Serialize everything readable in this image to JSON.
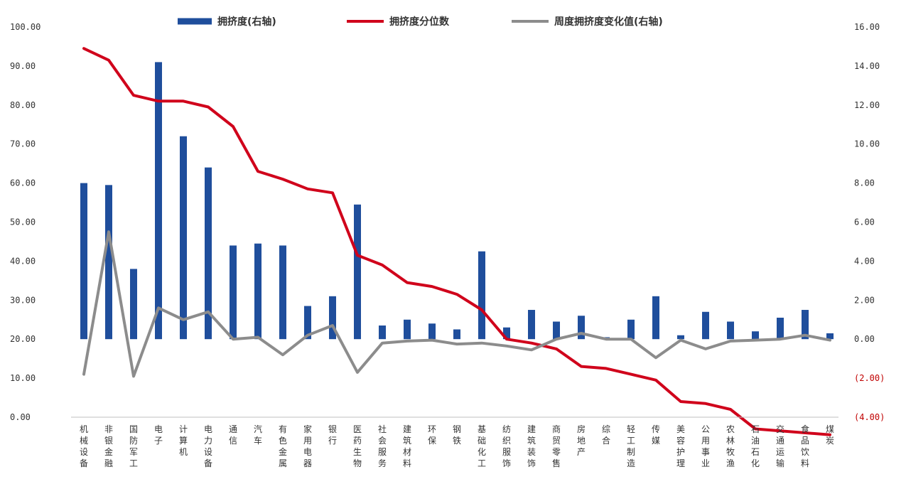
{
  "chart_data": {
    "type": "bar+line",
    "categories": [
      "机械设备",
      "非银金融",
      "国防军工",
      "电子",
      "计算机",
      "电力设备",
      "通信",
      "汽车",
      "有色金属",
      "家用电器",
      "银行",
      "医药生物",
      "社会服务",
      "建筑材料",
      "环保",
      "钢铁",
      "基础化工",
      "纺织服饰",
      "建筑装饰",
      "商贸零售",
      "房地产",
      "综合",
      "轻工制造",
      "传媒",
      "美容护理",
      "公用事业",
      "农林牧渔",
      "石油石化",
      "交通运输",
      "食品饮料",
      "煤炭"
    ],
    "left_axis": {
      "ylim": [
        0,
        100
      ],
      "ticks": [
        "0.00",
        "10.00",
        "20.00",
        "30.00",
        "40.00",
        "50.00",
        "60.00",
        "70.00",
        "80.00",
        "90.00",
        "100.00"
      ]
    },
    "right_axis": {
      "ylim": [
        -4,
        16
      ],
      "ticks": [
        "(4.00)",
        "(2.00)",
        "0.00",
        "2.00",
        "4.00",
        "6.00",
        "8.00",
        "10.00",
        "12.00",
        "14.00",
        "16.00"
      ]
    },
    "series": [
      {
        "name": "拥挤度(右轴)",
        "type": "bar",
        "axis": "right",
        "color": "#1f4e9c",
        "values": [
          8.0,
          7.9,
          3.6,
          14.2,
          10.4,
          8.8,
          4.8,
          4.9,
          4.8,
          1.7,
          2.2,
          6.9,
          0.7,
          1.0,
          0.8,
          0.5,
          4.5,
          0.6,
          1.5,
          0.9,
          1.2,
          0.1,
          1.0,
          2.2,
          0.2,
          1.4,
          0.9,
          0.4,
          1.1,
          1.5,
          0.3
        ]
      },
      {
        "name": "拥挤度分位数",
        "type": "line",
        "axis": "left",
        "color": "#d0021b",
        "values": [
          94.5,
          91.5,
          82.5,
          81.0,
          81.0,
          79.5,
          74.5,
          63.0,
          61.0,
          58.5,
          57.5,
          41.5,
          39.0,
          34.5,
          33.5,
          31.5,
          27.5,
          20.0,
          19.0,
          17.5,
          13.0,
          12.5,
          11.0,
          9.5,
          4.0,
          3.5,
          2.0,
          -3.0,
          -3.5,
          -4.0,
          -4.5
        ]
      },
      {
        "name": "周度拥挤度变化值(右轴)",
        "type": "line",
        "axis": "right",
        "color": "#8c8c8c",
        "values": [
          -1.8,
          5.5,
          -1.9,
          1.6,
          1.0,
          1.4,
          0.0,
          0.1,
          -0.8,
          0.2,
          0.7,
          -1.7,
          -0.2,
          -0.1,
          -0.05,
          -0.25,
          -0.2,
          -0.35,
          -0.55,
          0.0,
          0.3,
          0.0,
          0.0,
          -0.95,
          -0.05,
          -0.5,
          -0.1,
          -0.05,
          0.0,
          0.2,
          -0.05
        ]
      }
    ],
    "legend_position": "top",
    "grid": false
  }
}
